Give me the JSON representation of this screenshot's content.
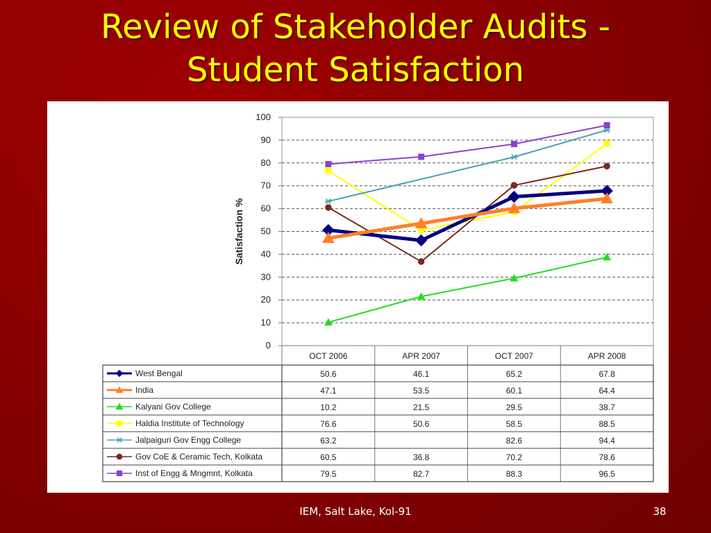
{
  "slide": {
    "title_line1": "Review of Stakeholder Audits -",
    "title_line2": "Student Satisfaction",
    "footer": "IEM, Salt Lake, Kol-91",
    "page_number": "38"
  },
  "colors": {
    "background": "#8a0000",
    "title": "#ffff00",
    "panel": "#ffffff"
  },
  "chart_data": {
    "type": "line",
    "title": "",
    "xlabel": "",
    "ylabel": "Satisfaction %",
    "ylim": [
      0,
      100
    ],
    "yticks": [
      0,
      10,
      20,
      30,
      40,
      50,
      60,
      70,
      80,
      90,
      100
    ],
    "grid": true,
    "categories": [
      "OCT 2006",
      "APR 2007",
      "OCT 2007",
      "APR 2008"
    ],
    "series": [
      {
        "name": "West Bengal",
        "values": [
          50.6,
          46.1,
          65.2,
          67.8
        ],
        "color": "#000080",
        "marker": "diamond",
        "weight": "bold"
      },
      {
        "name": "India",
        "values": [
          47.1,
          53.5,
          60.1,
          64.4
        ],
        "color": "#ff7f27",
        "marker": "triangle",
        "weight": "bold"
      },
      {
        "name": "Kalyani Gov College",
        "values": [
          10.2,
          21.5,
          29.5,
          38.7
        ],
        "color": "#22dd22",
        "marker": "triangle",
        "weight": "normal"
      },
      {
        "name": "Haldia Institute of Technology",
        "values": [
          76.6,
          50.6,
          58.5,
          88.5
        ],
        "color": "#ffff00",
        "marker": "square",
        "weight": "normal"
      },
      {
        "name": "Jalpaiguri Gov Engg  College",
        "values": [
          63.2,
          null,
          82.6,
          94.4
        ],
        "color": "#4a9fb5",
        "marker": "star",
        "weight": "normal"
      },
      {
        "name": "Gov CoE & Ceramic Tech, Kolkata",
        "values": [
          60.5,
          36.8,
          70.2,
          78.6
        ],
        "color": "#7a2a1a",
        "marker": "circle",
        "weight": "normal"
      },
      {
        "name": "Inst of Engg & Mngmnt, Kolkata",
        "values": [
          79.5,
          82.7,
          88.3,
          96.5
        ],
        "color": "#8844cc",
        "marker": "square",
        "weight": "normal"
      }
    ],
    "table": {
      "display_values": [
        [
          "50.6",
          "46.1",
          "65.2",
          "67.8"
        ],
        [
          "47.1",
          "53.5",
          "60.1",
          "64.4"
        ],
        [
          "10.2",
          "21.5",
          "29.5",
          "38.7"
        ],
        [
          "76.6",
          "50.6",
          "58.5",
          "88.5"
        ],
        [
          "63.2",
          "",
          "82.6",
          "94.4"
        ],
        [
          "60.5",
          "36.8",
          "70.2",
          "78.6"
        ],
        [
          "79.5",
          "82.7",
          "88.3",
          "96.5"
        ]
      ]
    }
  }
}
